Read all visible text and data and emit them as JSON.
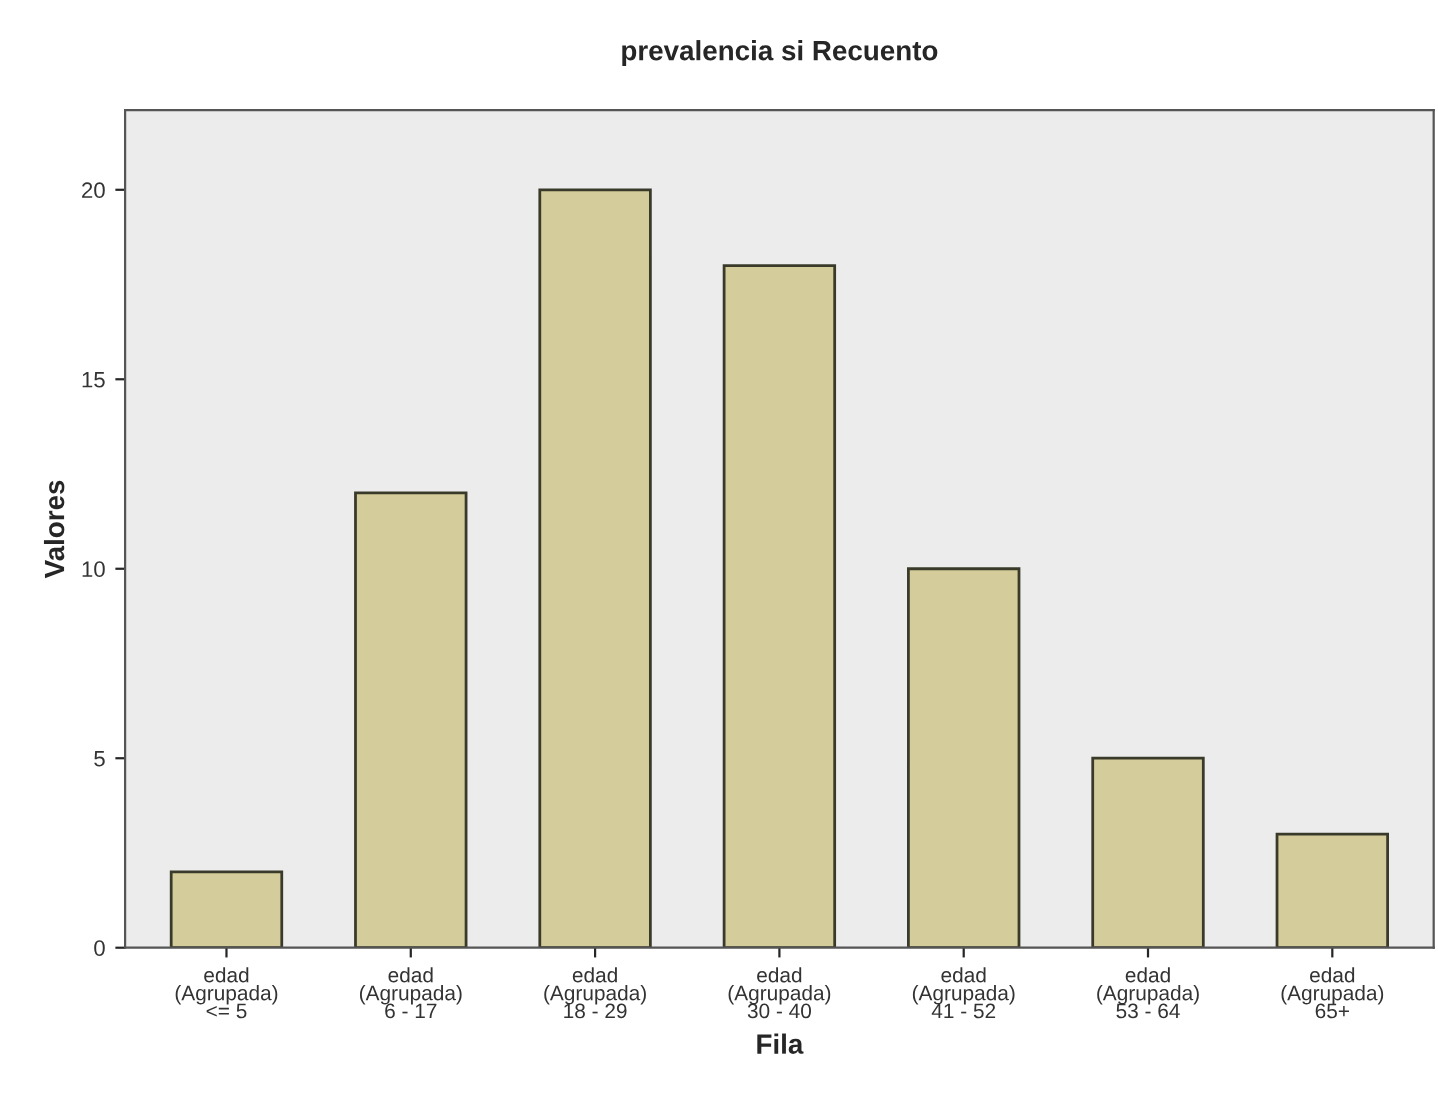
{
  "chart_data": {
    "type": "bar",
    "title": "prevalencia si Recuento",
    "xlabel": "Fila",
    "ylabel": "Valores",
    "categories": [
      "edad (Agrupada) <= 5",
      "edad (Agrupada) 6 - 17",
      "edad (Agrupada) 18 - 29",
      "edad (Agrupada) 30 - 40",
      "edad (Agrupada) 41 - 52",
      "edad (Agrupada) 53 - 64",
      "edad (Agrupada) 65+"
    ],
    "values": [
      2,
      12,
      20,
      18,
      10,
      5,
      3
    ],
    "color": "#d4cc9a",
    "ylim": [
      0,
      22.1
    ],
    "yticks": [
      0,
      5,
      10,
      15,
      20
    ],
    "grid": false,
    "legend": false
  }
}
